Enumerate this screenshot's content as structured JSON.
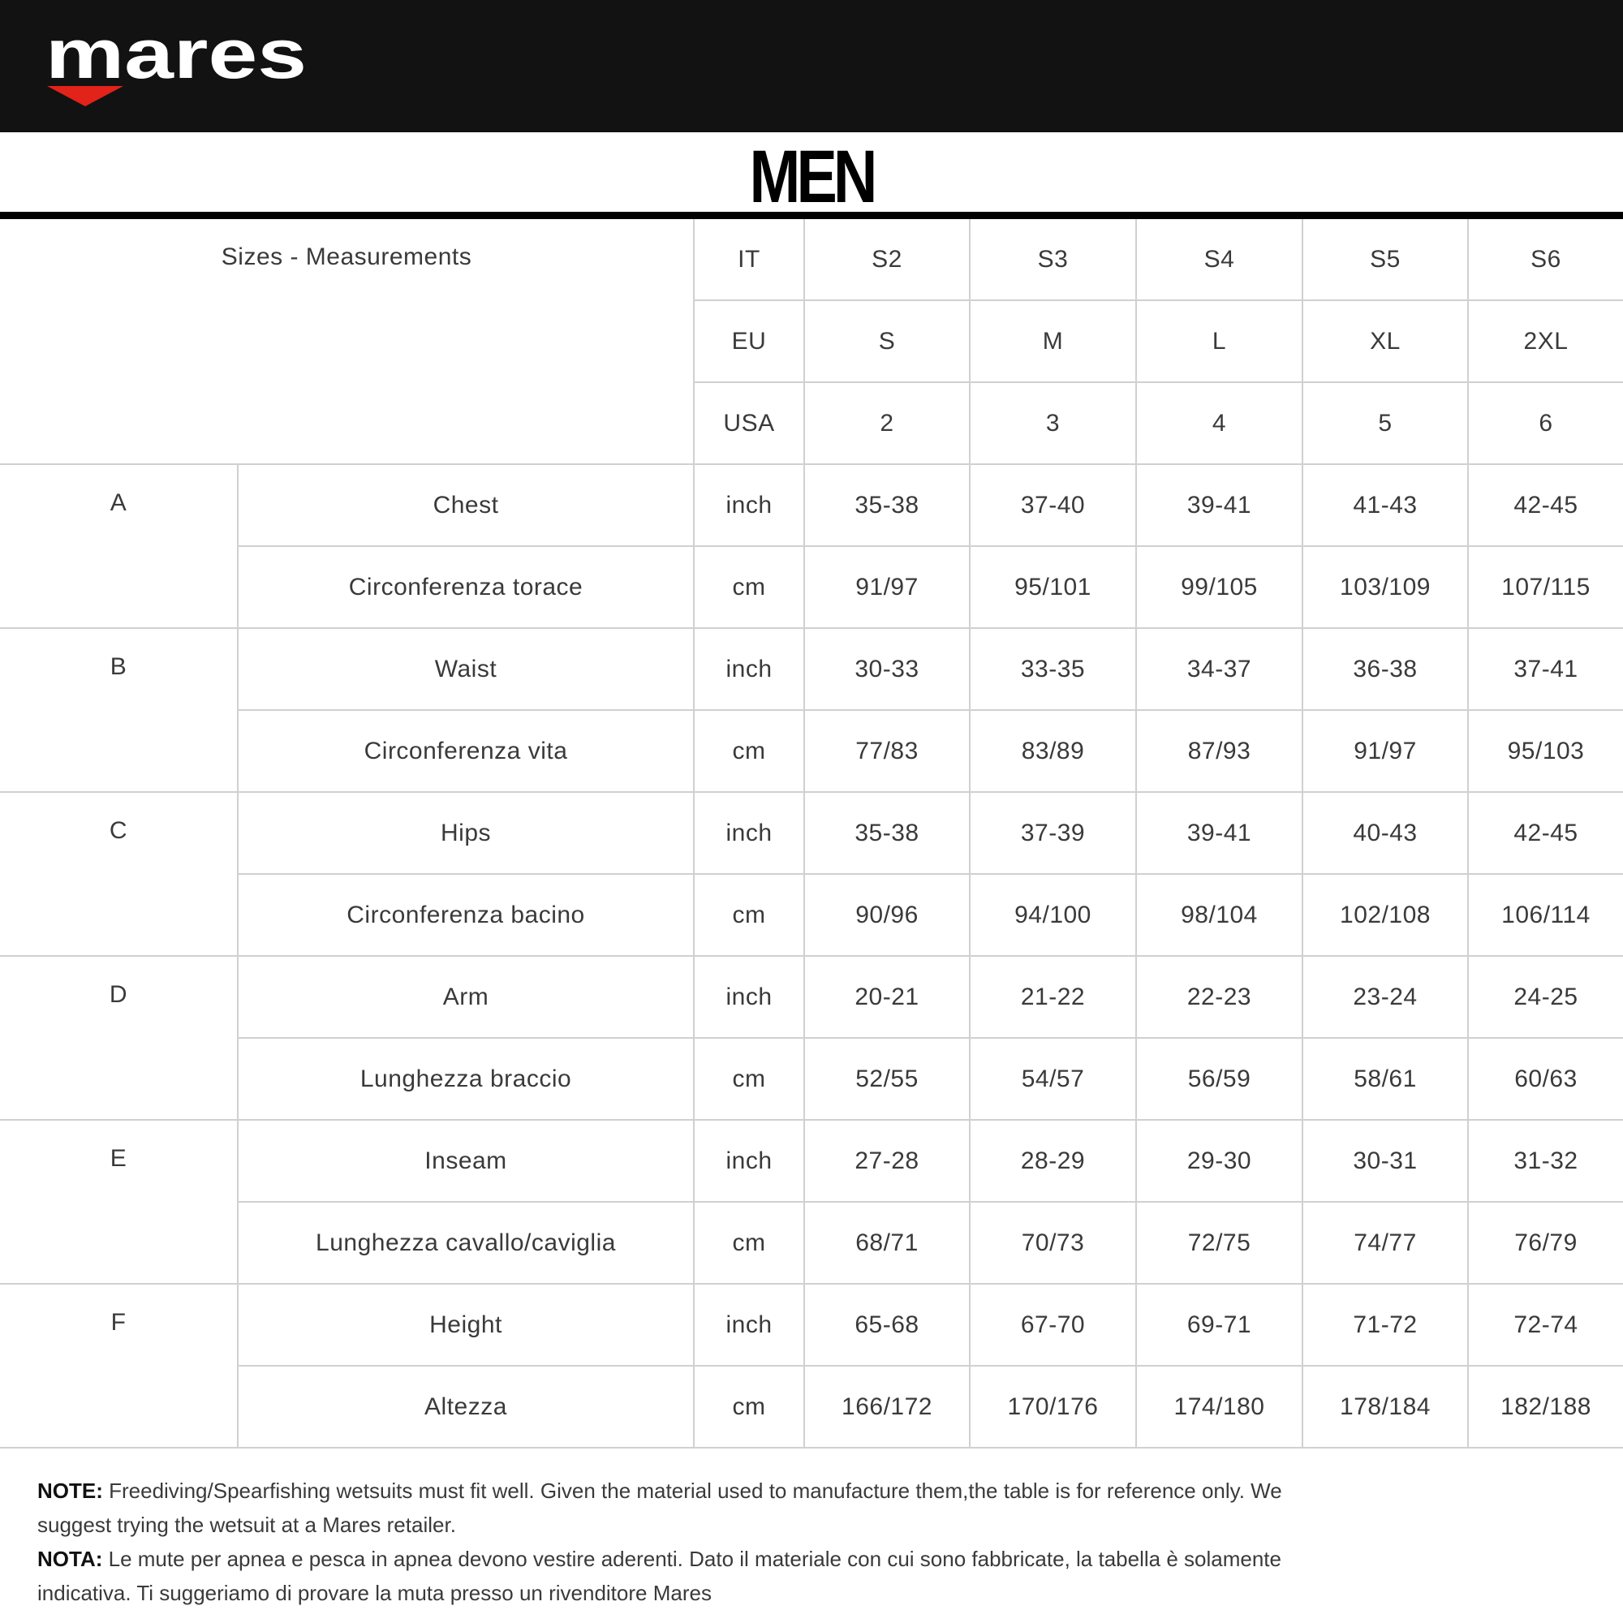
{
  "brand": {
    "logo_text": "mares",
    "accent_color": "#e2231a",
    "header_bg": "#121212"
  },
  "title": "MEN",
  "table": {
    "corner_label": "Sizes - Measurements",
    "size_rows": [
      {
        "system": "IT",
        "values": [
          "S2",
          "S3",
          "S4",
          "S5",
          "S6"
        ]
      },
      {
        "system": "EU",
        "values": [
          "S",
          "M",
          "L",
          "XL",
          "2XL"
        ]
      },
      {
        "system": "USA",
        "values": [
          "2",
          "3",
          "4",
          "5",
          "6"
        ]
      }
    ],
    "groups": [
      {
        "letter": "A",
        "rows": [
          {
            "label": "Chest",
            "unit": "inch",
            "values": [
              "35-38",
              "37-40",
              "39-41",
              "41-43",
              "42-45"
            ]
          },
          {
            "label": "Circonferenza torace",
            "unit": "cm",
            "values": [
              "91/97",
              "95/101",
              "99/105",
              "103/109",
              "107/115"
            ]
          }
        ]
      },
      {
        "letter": "B",
        "rows": [
          {
            "label": "Waist",
            "unit": "inch",
            "values": [
              "30-33",
              "33-35",
              "34-37",
              "36-38",
              "37-41"
            ]
          },
          {
            "label": "Circonferenza vita",
            "unit": "cm",
            "values": [
              "77/83",
              "83/89",
              "87/93",
              "91/97",
              "95/103"
            ]
          }
        ]
      },
      {
        "letter": "C",
        "rows": [
          {
            "label": "Hips",
            "unit": "inch",
            "values": [
              "35-38",
              "37-39",
              "39-41",
              "40-43",
              "42-45"
            ]
          },
          {
            "label": "Circonferenza bacino",
            "unit": "cm",
            "values": [
              "90/96",
              "94/100",
              "98/104",
              "102/108",
              "106/114"
            ]
          }
        ]
      },
      {
        "letter": "D",
        "rows": [
          {
            "label": "Arm",
            "unit": "inch",
            "values": [
              "20-21",
              "21-22",
              "22-23",
              "23-24",
              "24-25"
            ]
          },
          {
            "label": "Lunghezza braccio",
            "unit": "cm",
            "values": [
              "52/55",
              "54/57",
              "56/59",
              "58/61",
              "60/63"
            ]
          }
        ]
      },
      {
        "letter": "E",
        "rows": [
          {
            "label": "Inseam",
            "unit": "inch",
            "values": [
              "27-28",
              "28-29",
              "29-30",
              "30-31",
              "31-32"
            ]
          },
          {
            "label": "Lunghezza cavallo/caviglia",
            "unit": "cm",
            "values": [
              "68/71",
              "70/73",
              "72/75",
              "74/77",
              "76/79"
            ]
          }
        ]
      },
      {
        "letter": "F",
        "rows": [
          {
            "label": "Height",
            "unit": "inch",
            "values": [
              "65-68",
              "67-70",
              "69-71",
              "71-72",
              "72-74"
            ]
          },
          {
            "label": "Altezza",
            "unit": "cm",
            "values": [
              "166/172",
              "170/176",
              "174/180",
              "178/184",
              "182/188"
            ]
          }
        ]
      }
    ]
  },
  "notes": [
    {
      "label": "NOTE:",
      "text": " Freediving/Spearfishing wetsuits must fit well. Given the material used to manufacture them,the table is for reference only. We suggest trying the wetsuit at a Mares retailer."
    },
    {
      "label": "NOTA:",
      "text": " Le mute per apnea e pesca in apnea devono vestire aderenti. Dato il materiale con cui sono fabbricate, la tabella è solamente indicativa. Ti suggeriamo di provare la muta presso un rivenditore Mares"
    }
  ]
}
